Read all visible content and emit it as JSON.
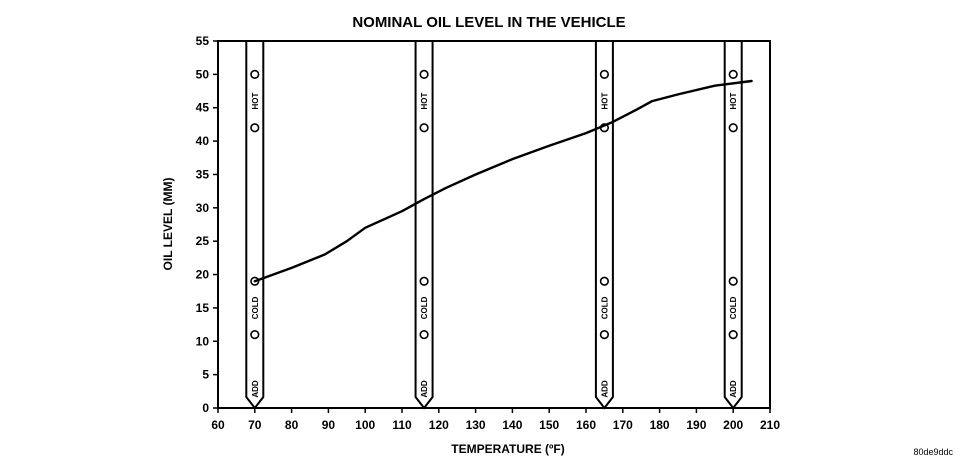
{
  "chart_data": {
    "type": "line",
    "title": "NOMINAL OIL LEVEL IN THE VEHICLE",
    "xlabel": "TEMPERATURE (ºF)",
    "ylabel": "OIL LEVEL (MM)",
    "xlim": [
      60,
      210
    ],
    "ylim": [
      0,
      55
    ],
    "xticks": [
      60,
      70,
      80,
      90,
      100,
      110,
      120,
      130,
      140,
      150,
      160,
      170,
      180,
      190,
      200,
      210
    ],
    "yticks": [
      0,
      5,
      10,
      15,
      20,
      25,
      30,
      35,
      40,
      45,
      50,
      55
    ],
    "grid": false,
    "series": [
      {
        "x": [
          70,
          80,
          89,
          95,
          100,
          110,
          116,
          122,
          130,
          140,
          150,
          160,
          167,
          173,
          178,
          185,
          195,
          205
        ],
        "y": [
          19,
          21,
          23,
          25,
          27,
          29.5,
          31.3,
          33,
          35,
          37.3,
          39.3,
          41.2,
          42.8,
          44.5,
          46,
          47,
          48.3,
          49
        ]
      }
    ],
    "dipsticks": [
      {
        "x": 70,
        "hot_marks": [
          50,
          42
        ],
        "cold_marks": [
          19,
          11
        ]
      },
      {
        "x": 116,
        "hot_marks": [
          50,
          42
        ],
        "cold_marks": [
          19,
          11
        ]
      },
      {
        "x": 165,
        "hot_marks": [
          50,
          42
        ],
        "cold_marks": [
          19,
          11
        ]
      },
      {
        "x": 200,
        "hot_marks": [
          50,
          42
        ],
        "cold_marks": [
          19,
          11
        ]
      }
    ],
    "dipstick_labels": {
      "hot": "HOT",
      "cold": "COLD",
      "add": "ADD"
    }
  },
  "caption": "80de9ddc"
}
